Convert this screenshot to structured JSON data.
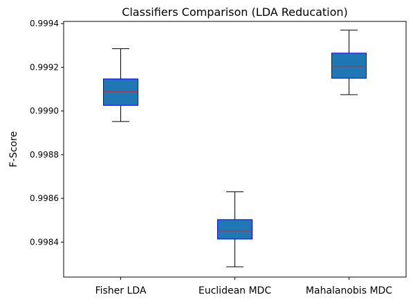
{
  "chart_data": {
    "type": "box",
    "title": "Classifiers Comparison (LDA Reducation)",
    "xlabel": "",
    "ylabel": "F-Score",
    "categories": [
      "Fisher LDA",
      "Euclidean MDC",
      "Mahalanobis MDC"
    ],
    "boxes": [
      {
        "whisker_low": 0.998952,
        "q1": 0.999026,
        "median": 0.99909,
        "q3": 0.999147,
        "whisker_high": 0.999285
      },
      {
        "whisker_low": 0.998287,
        "q1": 0.998414,
        "median": 0.998452,
        "q3": 0.998503,
        "whisker_high": 0.99863
      },
      {
        "whisker_low": 0.999075,
        "q1": 0.99915,
        "median": 0.999205,
        "q3": 0.999265,
        "whisker_high": 0.99937
      }
    ],
    "ylim": [
      0.99824,
      0.99941
    ],
    "yticks": [
      "0.9984",
      "0.9986",
      "0.9988",
      "0.9990",
      "0.9992",
      "0.9994"
    ],
    "ytick_values": [
      0.9984,
      0.9986,
      0.9988,
      0.999,
      0.9992,
      0.9994
    ],
    "grid": false,
    "colors": {
      "box_fill": "#1f77b4",
      "box_edge": "#0000ff",
      "median": "#d62728",
      "whisker": "#000000"
    }
  }
}
